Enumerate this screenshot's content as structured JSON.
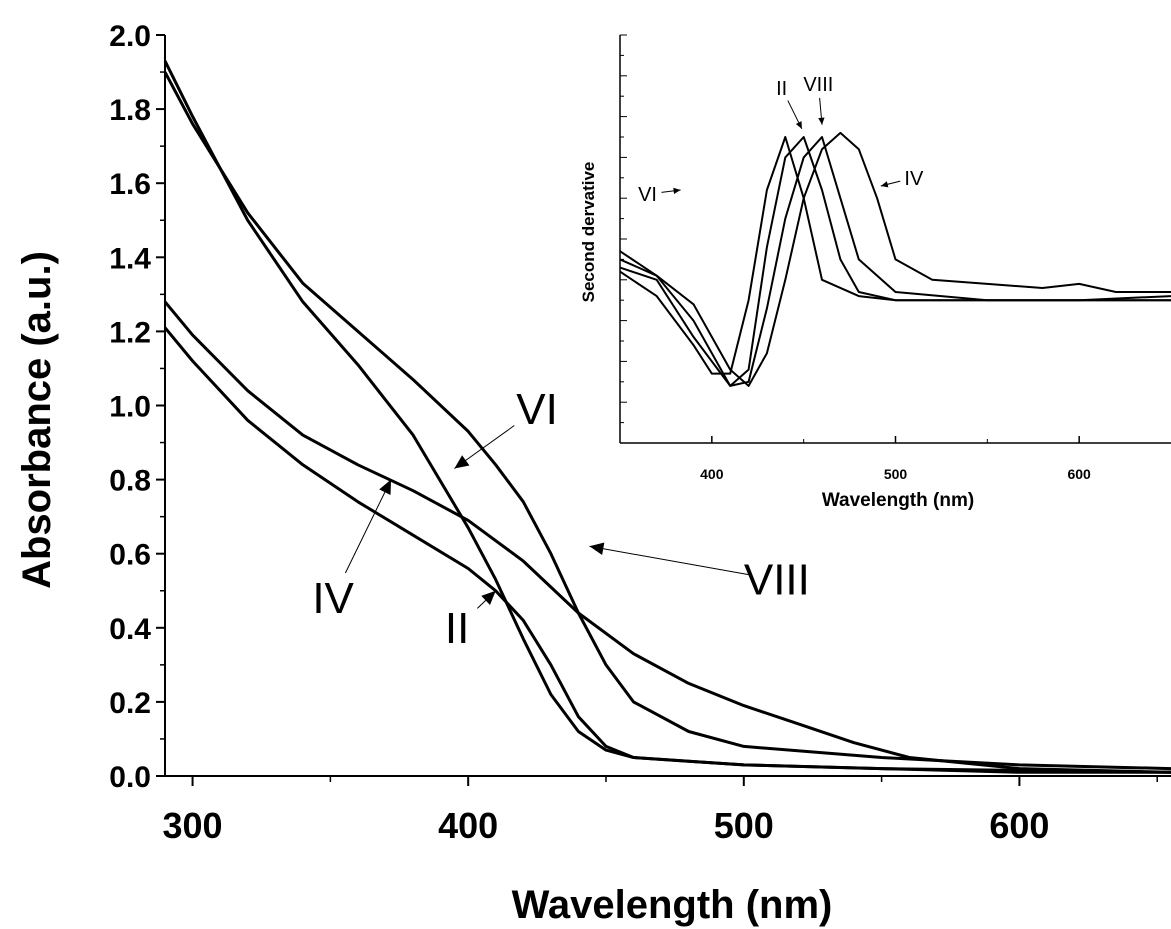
{
  "chart_data": [
    {
      "type": "line",
      "title": "",
      "xlabel": "Wavelength (nm)",
      "ylabel": "Absorbance (a.u.)",
      "xlim": [
        290,
        655
      ],
      "ylim": [
        0,
        2
      ],
      "xticks": [
        "300",
        "400",
        "500",
        "600"
      ],
      "yticks": [
        "0.0",
        "0.2",
        "0.4",
        "0.6",
        "0.8",
        "1.0",
        "1.2",
        "1.4",
        "1.6",
        "1.8",
        "2.0"
      ],
      "annotations": [
        {
          "label": "VI",
          "text_x": 425,
          "text_y": 0.99,
          "arrow_to": [
            395,
            0.83
          ]
        },
        {
          "label": "VIII",
          "text_x": 512,
          "text_y": 0.53,
          "arrow_to": [
            444,
            0.62
          ]
        },
        {
          "label": "IV",
          "text_x": 351,
          "text_y": 0.48,
          "arrow_to": [
            372,
            0.8
          ]
        },
        {
          "label": "II",
          "text_x": 396,
          "text_y": 0.4,
          "arrow_to": [
            410,
            0.5
          ]
        }
      ],
      "series": [
        {
          "name": "II",
          "x": [
            290,
            300,
            320,
            340,
            360,
            380,
            400,
            410,
            420,
            430,
            440,
            450,
            460,
            480,
            500,
            550,
            600,
            655
          ],
          "y": [
            1.21,
            1.12,
            0.96,
            0.84,
            0.74,
            0.65,
            0.56,
            0.5,
            0.42,
            0.3,
            0.16,
            0.08,
            0.05,
            0.04,
            0.03,
            0.02,
            0.015,
            0.01
          ]
        },
        {
          "name": "IV",
          "x": [
            290,
            300,
            320,
            340,
            360,
            380,
            400,
            420,
            440,
            460,
            480,
            500,
            520,
            540,
            560,
            600,
            655
          ],
          "y": [
            1.28,
            1.19,
            1.04,
            0.92,
            0.84,
            0.77,
            0.69,
            0.58,
            0.44,
            0.33,
            0.25,
            0.19,
            0.14,
            0.09,
            0.05,
            0.02,
            0.01
          ]
        },
        {
          "name": "VI",
          "x": [
            290,
            300,
            320,
            340,
            360,
            380,
            400,
            410,
            420,
            430,
            440,
            450,
            460,
            480,
            500,
            550,
            600,
            655
          ],
          "y": [
            1.93,
            1.78,
            1.5,
            1.28,
            1.11,
            0.92,
            0.67,
            0.53,
            0.37,
            0.22,
            0.12,
            0.07,
            0.05,
            0.04,
            0.03,
            0.02,
            0.01,
            0.01
          ]
        },
        {
          "name": "VIII",
          "x": [
            290,
            300,
            320,
            340,
            360,
            380,
            400,
            410,
            420,
            430,
            440,
            450,
            460,
            480,
            500,
            550,
            600,
            655
          ],
          "y": [
            1.9,
            1.76,
            1.52,
            1.33,
            1.2,
            1.07,
            0.93,
            0.84,
            0.74,
            0.6,
            0.44,
            0.3,
            0.2,
            0.12,
            0.08,
            0.05,
            0.03,
            0.02
          ]
        }
      ]
    },
    {
      "type": "line",
      "title": "",
      "xlabel": "Wavelength (nm)",
      "ylabel": "Second dervative",
      "xlim": [
        350,
        650
      ],
      "ylim": [
        0,
        1
      ],
      "xticks": [
        "400",
        "500",
        "600"
      ],
      "annotations": [
        {
          "label": "II",
          "text_x": 438,
          "text_y": 0.87,
          "arrow_to": [
            449,
            0.77
          ]
        },
        {
          "label": "VIII",
          "text_x": 458,
          "text_y": 0.88,
          "arrow_to": [
            460,
            0.78
          ]
        },
        {
          "label": "VI",
          "text_x": 365,
          "text_y": 0.61,
          "arrow_to": [
            383,
            0.62
          ]
        },
        {
          "label": "IV",
          "text_x": 510,
          "text_y": 0.65,
          "arrow_to": [
            492,
            0.63
          ]
        }
      ],
      "series": [
        {
          "name": "VI",
          "x": [
            350,
            370,
            390,
            400,
            410,
            420,
            430,
            440,
            450,
            460,
            480,
            500,
            550,
            600,
            650
          ],
          "y": [
            0.42,
            0.36,
            0.24,
            0.17,
            0.17,
            0.35,
            0.62,
            0.75,
            0.6,
            0.4,
            0.36,
            0.35,
            0.35,
            0.35,
            0.35
          ]
        },
        {
          "name": "II",
          "x": [
            350,
            370,
            390,
            410,
            420,
            430,
            440,
            450,
            460,
            470,
            480,
            500,
            550,
            600,
            650
          ],
          "y": [
            0.47,
            0.41,
            0.3,
            0.14,
            0.18,
            0.48,
            0.7,
            0.75,
            0.62,
            0.45,
            0.37,
            0.35,
            0.35,
            0.35,
            0.35
          ]
        },
        {
          "name": "VIII",
          "x": [
            350,
            370,
            390,
            410,
            420,
            430,
            440,
            450,
            460,
            470,
            480,
            500,
            550,
            600,
            650
          ],
          "y": [
            0.43,
            0.4,
            0.26,
            0.14,
            0.15,
            0.33,
            0.55,
            0.7,
            0.75,
            0.6,
            0.45,
            0.37,
            0.35,
            0.35,
            0.36
          ]
        },
        {
          "name": "IV",
          "x": [
            350,
            370,
            390,
            410,
            420,
            430,
            440,
            450,
            460,
            470,
            480,
            490,
            500,
            520,
            550,
            580,
            600,
            620,
            650
          ],
          "y": [
            0.45,
            0.41,
            0.34,
            0.18,
            0.14,
            0.22,
            0.4,
            0.6,
            0.72,
            0.76,
            0.72,
            0.6,
            0.45,
            0.4,
            0.39,
            0.38,
            0.39,
            0.37,
            0.37
          ]
        }
      ]
    }
  ]
}
